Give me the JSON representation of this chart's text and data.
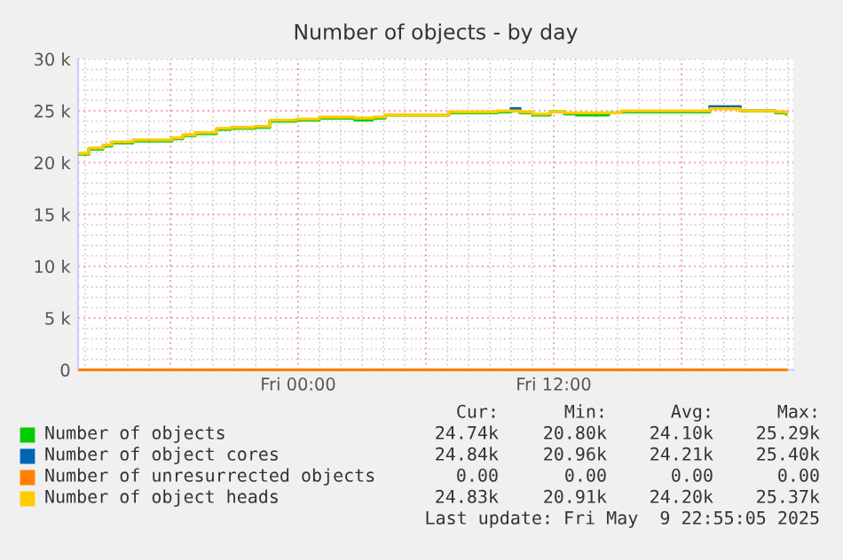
{
  "chart_data": {
    "type": "step",
    "title": "Number of objects - by day",
    "xlim": [
      "2025-05-08T13:40",
      "2025-05-09T23:15"
    ],
    "xticks": [
      {
        "value": "2025-05-08T18:00",
        "label": null
      },
      {
        "value": "2025-05-09T00:00",
        "label": "Fri 00:00"
      },
      {
        "value": "2025-05-09T06:00",
        "label": null
      },
      {
        "value": "2025-05-09T12:00",
        "label": "Fri 12:00"
      },
      {
        "value": "2025-05-09T18:00",
        "label": null
      }
    ],
    "ylim": [
      0,
      30000
    ],
    "yticks": [
      0,
      {
        "value": 5000,
        "label": "5 k"
      },
      {
        "value": 10000,
        "label": "10 k"
      },
      {
        "value": 15000,
        "label": "15 k"
      },
      {
        "value": 20000,
        "label": "20 k"
      },
      {
        "value": 25000,
        "label": "25 k"
      },
      {
        "value": 30000,
        "label": "30 k"
      }
    ],
    "grid": true,
    "legend": "bottom",
    "x": [
      "2025-05-08T13:45",
      "2025-05-08T14:10",
      "2025-05-08T14:50",
      "2025-05-08T15:15",
      "2025-05-08T16:15",
      "2025-05-08T18:05",
      "2025-05-08T18:35",
      "2025-05-08T19:10",
      "2025-05-08T20:10",
      "2025-05-08T20:50",
      "2025-05-08T21:55",
      "2025-05-08T22:40",
      "2025-05-08T23:55",
      "2025-05-09T01:00",
      "2025-05-09T02:40",
      "2025-05-09T03:30",
      "2025-05-09T04:05",
      "2025-05-09T07:05",
      "2025-05-09T09:20",
      "2025-05-09T10:00",
      "2025-05-09T10:25",
      "2025-05-09T11:00",
      "2025-05-09T11:50",
      "2025-05-09T12:30",
      "2025-05-09T13:05",
      "2025-05-09T14:35",
      "2025-05-09T15:10",
      "2025-05-09T19:20",
      "2025-05-09T20:45",
      "2025-05-09T22:25",
      "2025-05-09T22:55"
    ],
    "series": [
      {
        "name": "Number of objects",
        "color": "#00cc00",
        "values": [
          20800,
          21300,
          21600,
          21900,
          22100,
          22300,
          22600,
          22800,
          23200,
          23300,
          23400,
          24000,
          24100,
          24300,
          24100,
          24300,
          24600,
          24800,
          24900,
          25000,
          24800,
          24600,
          24900,
          24700,
          24600,
          24800,
          24900,
          25300,
          25000,
          24800,
          24700
        ]
      },
      {
        "name": "Number of object cores",
        "color": "#0066b3",
        "x": [
          "2025-05-09T10:00",
          "2025-05-09T10:25",
          "2025-05-09T15:00",
          "2025-05-09T19:20",
          "2025-05-09T20:45"
        ],
        "values": [
          25200,
          25200,
          null,
          25400,
          25400
        ]
      },
      {
        "name": "Number of unresurrected objects",
        "color": "#ff8000",
        "x": [
          "2025-05-08T13:45",
          "2025-05-09T22:55"
        ],
        "values": [
          0,
          0
        ]
      },
      {
        "name": "Number of object heads",
        "color": "#ffcc00",
        "values": [
          20900,
          21400,
          21700,
          22000,
          22200,
          22400,
          22700,
          22900,
          23300,
          23400,
          23500,
          24100,
          24200,
          24400,
          24300,
          24400,
          24600,
          24900,
          25000,
          25000,
          24900,
          24700,
          24900,
          24800,
          24800,
          24800,
          25000,
          25200,
          25000,
          24900,
          24800
        ]
      }
    ],
    "annotations": [
      "Cur:",
      "Min:",
      "Avg:",
      "Max:",
      "24.74k",
      "20.80k",
      "24.10k",
      "25.29k",
      "24.84k",
      "20.96k",
      "24.21k",
      "25.40k",
      "0.00",
      "0.00",
      "0.00",
      "0.00",
      "24.83k",
      "20.91k",
      "24.20k",
      "25.37k",
      "Last update: Fri May  9 22:55:05 2025"
    ]
  }
}
